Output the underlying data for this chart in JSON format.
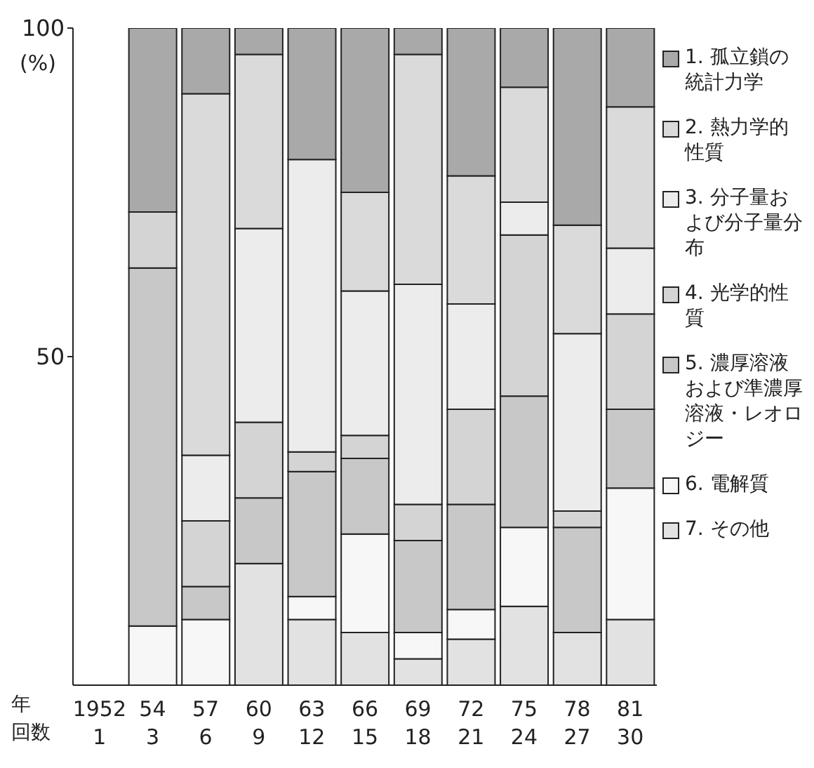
{
  "chart_data": {
    "type": "bar",
    "stacked": true,
    "categories": [
      "1952\n1",
      "54\n3",
      "57\n6",
      "60\n9",
      "63\n12",
      "66\n15",
      "69\n18",
      "72\n21",
      "75\n24",
      "78\n27",
      "81\n30"
    ],
    "annotations": [
      "年",
      "回数"
    ],
    "ylabel": "(%)",
    "ylim": [
      0,
      100
    ],
    "yticks": [
      50,
      100
    ],
    "legend": "right",
    "series": [
      {
        "name": "7. その他",
        "color": "#e2e2e2",
        "values": [
          null,
          0,
          0,
          18.5,
          10,
          8,
          4,
          7,
          12,
          8,
          10
        ]
      },
      {
        "name": "6. 電解質",
        "color": "#f7f7f7",
        "values": [
          null,
          9,
          10,
          0,
          3.5,
          15,
          4,
          4.5,
          12,
          0,
          20
        ]
      },
      {
        "name": "5. 濃厚溶液および準濃厚溶液・レオロジー",
        "color": "#c8c8c8",
        "values": [
          null,
          54.5,
          5,
          10,
          19,
          11.5,
          14,
          16,
          20,
          16,
          12
        ]
      },
      {
        "name": "4. 光学的性質",
        "color": "#d4d4d4",
        "values": [
          null,
          8.5,
          10,
          11.5,
          3,
          3.5,
          5.5,
          14.5,
          24.5,
          2.5,
          14.5
        ]
      },
      {
        "name": "3. 分子量および分子量分布",
        "color": "#ececec",
        "values": [
          null,
          0,
          10,
          29.5,
          44.5,
          22,
          33.5,
          16,
          5,
          27,
          10
        ]
      },
      {
        "name": "2. 熱力学的性質",
        "color": "#dadada",
        "values": [
          null,
          0,
          55,
          26.5,
          0,
          15,
          35,
          19.5,
          17.5,
          16.5,
          21.5
        ]
      },
      {
        "name": "1. 孤立鎖の統計力学",
        "color": "#a9a9a9",
        "values": [
          null,
          28,
          10,
          4,
          20,
          25,
          4,
          22.5,
          9,
          30,
          12
        ]
      }
    ]
  }
}
